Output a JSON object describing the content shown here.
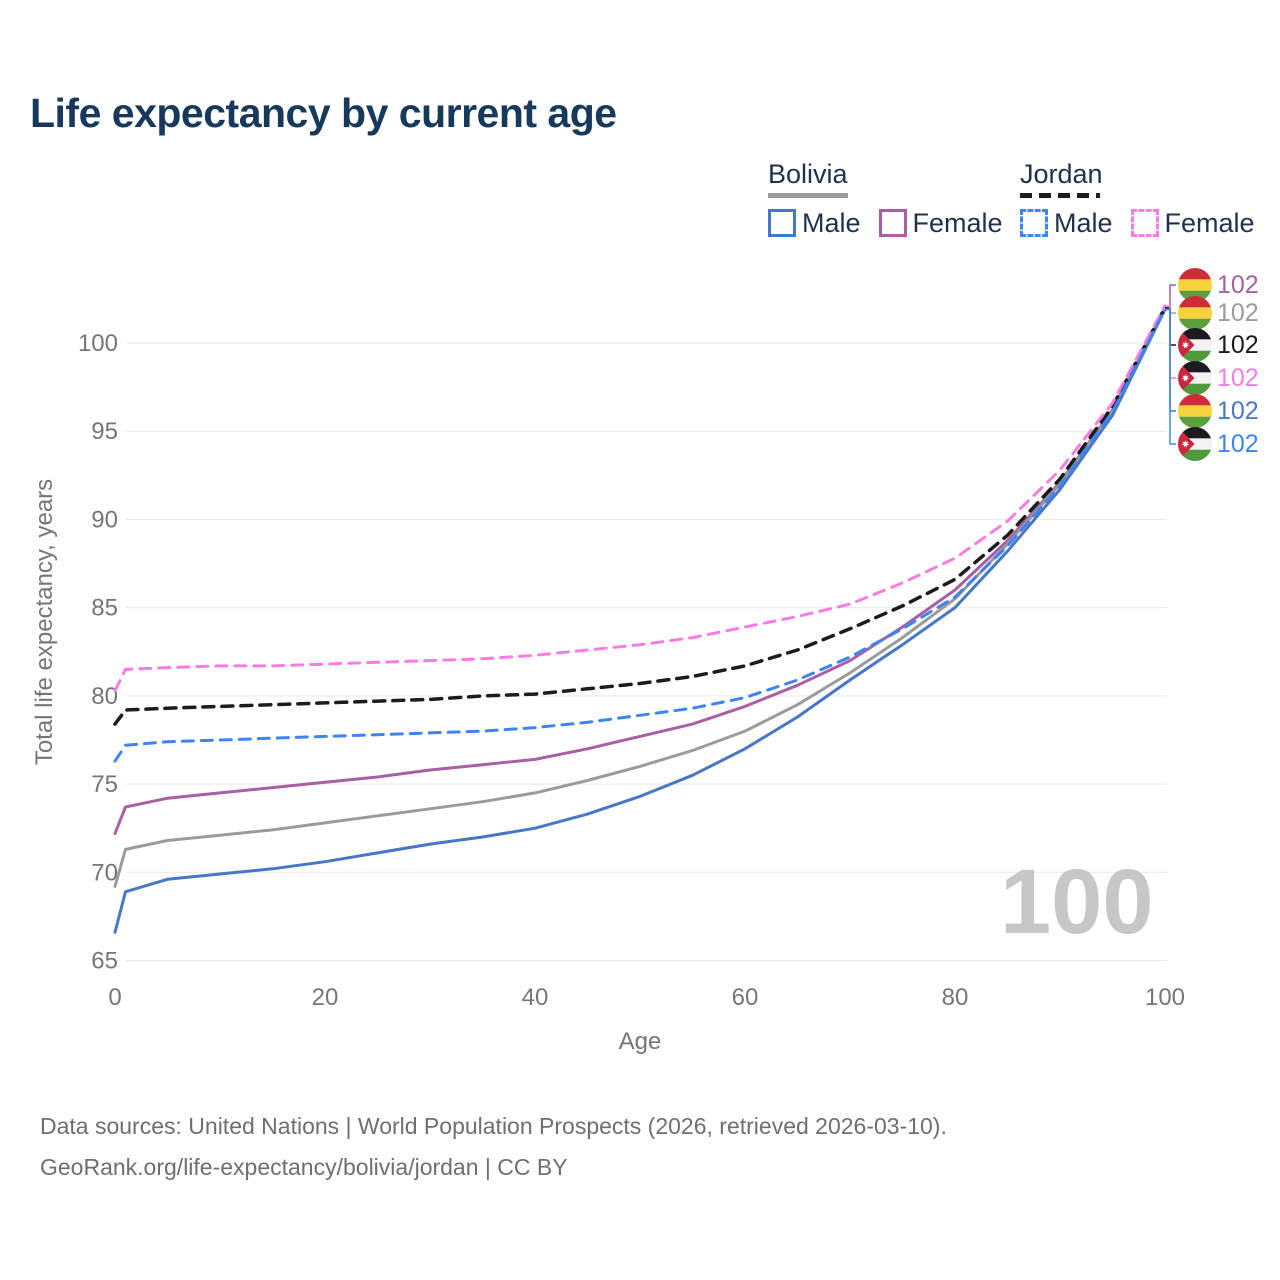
{
  "title": "Life expectancy by current age",
  "legend": {
    "groups": [
      {
        "title": "Bolivia",
        "line_style": "solid",
        "line_color": "#9b9b9b",
        "items": [
          {
            "label": "Male",
            "color": "#4677c8",
            "style": "solid"
          },
          {
            "label": "Female",
            "color": "#a95fa4",
            "style": "solid"
          }
        ]
      },
      {
        "title": "Jordan",
        "line_style": "dashed",
        "line_color": "#1c1c1c",
        "items": [
          {
            "label": "Male",
            "color": "#3d85f2",
            "style": "dashed"
          },
          {
            "label": "Female",
            "color": "#f97ce3",
            "style": "dashed"
          }
        ]
      }
    ]
  },
  "chart_data": {
    "type": "line",
    "title": "Life expectancy by current age",
    "xlabel": "Age",
    "ylabel": "Total life expectancy, years",
    "xlim": [
      0,
      100
    ],
    "ylim": [
      65,
      103.5
    ],
    "xticks": [
      0,
      20,
      40,
      60,
      80,
      100
    ],
    "yticks": [
      65,
      70,
      75,
      80,
      85,
      90,
      95,
      100
    ],
    "grid": "horizontal",
    "legend_position": "top-right",
    "x": [
      0,
      1,
      5,
      10,
      15,
      20,
      25,
      30,
      35,
      40,
      45,
      50,
      55,
      60,
      65,
      70,
      75,
      80,
      85,
      90,
      95,
      100
    ],
    "series": [
      {
        "name": "Bolivia Female",
        "country": "Bolivia",
        "sex": "Female",
        "style": "solid",
        "color": "#a95fa4",
        "end_label": "102",
        "values": [
          72.2,
          73.7,
          74.2,
          74.5,
          74.8,
          75.1,
          75.4,
          75.8,
          76.1,
          76.4,
          77.0,
          77.7,
          78.4,
          79.4,
          80.6,
          82.0,
          83.9,
          86.0,
          88.8,
          92.1,
          96.2,
          102.0
        ]
      },
      {
        "name": "Bolivia (both sexes)",
        "country": "Bolivia",
        "sex": "Both",
        "style": "solid",
        "color": "#9b9b9b",
        "end_label": "102",
        "values": [
          69.2,
          71.3,
          71.8,
          72.1,
          72.4,
          72.8,
          73.2,
          73.6,
          74.0,
          74.5,
          75.2,
          76.0,
          76.9,
          78.0,
          79.5,
          81.3,
          83.3,
          85.5,
          88.6,
          92.0,
          96.1,
          102.0
        ]
      },
      {
        "name": "Jordan (both sexes)",
        "country": "Jordan",
        "sex": "Both",
        "style": "dashed",
        "color": "#1c1c1c",
        "end_label": "102",
        "values": [
          78.4,
          79.2,
          79.3,
          79.4,
          79.5,
          79.6,
          79.7,
          79.8,
          80.0,
          80.1,
          80.4,
          80.7,
          81.1,
          81.7,
          82.6,
          83.8,
          85.1,
          86.6,
          89.1,
          92.3,
          96.4,
          102.0
        ]
      },
      {
        "name": "Jordan Female",
        "country": "Jordan",
        "sex": "Female",
        "style": "dashed",
        "color": "#f97ce3",
        "end_label": "102",
        "values": [
          80.3,
          81.5,
          81.6,
          81.7,
          81.7,
          81.8,
          81.9,
          82.0,
          82.1,
          82.3,
          82.6,
          82.9,
          83.3,
          83.9,
          84.5,
          85.2,
          86.4,
          87.8,
          89.9,
          92.8,
          96.6,
          102.1
        ]
      },
      {
        "name": "Bolivia Male",
        "country": "Bolivia",
        "sex": "Male",
        "style": "solid",
        "color": "#4677c8",
        "end_label": "102",
        "values": [
          66.6,
          68.9,
          69.6,
          69.9,
          70.2,
          70.6,
          71.1,
          71.6,
          72.0,
          72.5,
          73.3,
          74.3,
          75.5,
          77.0,
          78.8,
          80.9,
          82.9,
          85.0,
          88.2,
          91.7,
          95.9,
          101.9
        ]
      },
      {
        "name": "Jordan Male",
        "country": "Jordan",
        "sex": "Male",
        "style": "dashed",
        "color": "#3d85f2",
        "end_label": "102",
        "values": [
          76.3,
          77.2,
          77.4,
          77.5,
          77.6,
          77.7,
          77.8,
          77.9,
          78.0,
          78.2,
          78.5,
          78.9,
          79.3,
          79.9,
          80.9,
          82.2,
          83.8,
          85.6,
          88.5,
          91.9,
          96.1,
          101.9
        ]
      }
    ]
  },
  "end_labels": [
    {
      "flag": "bolivia",
      "value": "102"
    },
    {
      "flag": "bolivia",
      "value": "102"
    },
    {
      "flag": "jordan",
      "value": "102"
    },
    {
      "flag": "jordan",
      "value": "102"
    },
    {
      "flag": "bolivia",
      "value": "102"
    },
    {
      "flag": "jordan",
      "value": "102"
    }
  ],
  "watermark": "100",
  "footer": {
    "line1": "Data sources: United Nations | World Population Prospects (2026, retrieved 2026-03-10).",
    "line2": "GeoRank.org/life-expectancy/bolivia/jordan | CC BY"
  },
  "colors": {
    "title_text": "#17395c",
    "legend_text": "#20324e",
    "axis_text": "#767676",
    "grid": "#e9e9e9",
    "watermark": "#c7c7c7",
    "footer_text": "#6f6f6f",
    "bolivia_flag": [
      "#cf2b38",
      "#f6d33c",
      "#5c9f3d"
    ],
    "jordan_flag": [
      "#1b1b1f",
      "#f3f3f3",
      "#4e9a3c",
      "#ce2540"
    ]
  }
}
